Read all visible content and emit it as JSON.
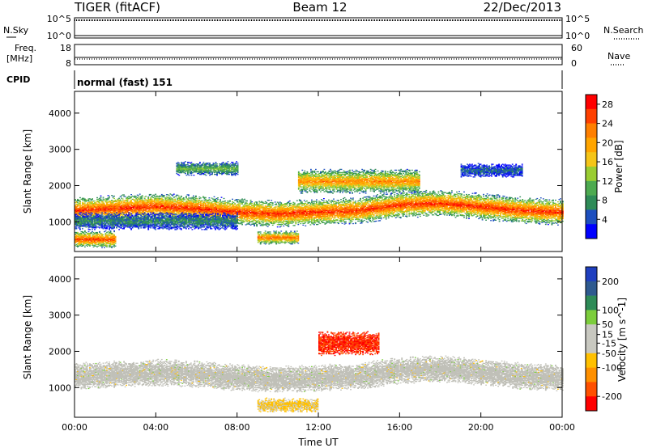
{
  "header": {
    "title": "TIGER (fitACF)",
    "beam": "Beam 12",
    "date": "22/Dec/2013"
  },
  "noise_panel": {
    "left_label": "N.Sky",
    "right_label": "N.Search",
    "left_ticks": [
      "10^5",
      "10^0"
    ],
    "right_ticks": [
      "10^5",
      "10^0"
    ]
  },
  "freq_panel": {
    "left_label_1": "Freq.",
    "left_label_2": "[MHz]",
    "left_ticks": [
      "18",
      "8"
    ],
    "right_label": "Nave",
    "right_ticks": [
      "60",
      "0"
    ]
  },
  "cpid_panel": {
    "label": "CPID",
    "text": "normal (fast) 151"
  },
  "colors": {
    "power_scale": [
      "#0000ff",
      "#1d4fbf",
      "#2e8b57",
      "#4daa50",
      "#9acd32",
      "#f5c518",
      "#ffa500",
      "#ff7f00",
      "#ff4000",
      "#ff0000"
    ],
    "velocity_scale": [
      "#1f3fbf",
      "#2e5a8f",
      "#2e8b57",
      "#7ccd3c",
      "#c8c8c0",
      "#c8c8c0",
      "#ffc000",
      "#ff9000",
      "#ff5000",
      "#ff0000"
    ],
    "ground_scatter": "#c0c0b8"
  },
  "chart_data": [
    {
      "type": "heatmap",
      "name": "power-panel",
      "xlabel": "",
      "ylabel": "Slant Range [km]",
      "x_ticks": [
        "00:00",
        "04:00",
        "08:00",
        "12:00",
        "16:00",
        "20:00",
        "00:00"
      ],
      "y_ticks": [
        1000,
        2000,
        3000,
        4000
      ],
      "xlim": [
        0,
        24
      ],
      "ylim": [
        180,
        4600
      ],
      "colorbar": {
        "label": "Power [dB]",
        "ticks": [
          4,
          8,
          12,
          16,
          20,
          24,
          28
        ],
        "range": [
          0,
          30
        ]
      },
      "bands": [
        {
          "t": [
            0,
            24
          ],
          "center": [
            1300,
            1350,
            1400,
            1350,
            1250,
            1200,
            1250,
            1300,
            1450,
            1500,
            1400,
            1300,
            1250
          ],
          "width": 380,
          "level": 27
        },
        {
          "t": [
            0,
            8
          ],
          "center": 1000,
          "width": 250,
          "level": 8
        },
        {
          "t": [
            0,
            2
          ],
          "center": 500,
          "width": 250,
          "level": 26
        },
        {
          "t": [
            9,
            11
          ],
          "center": 550,
          "width": 200,
          "level": 24
        },
        {
          "t": [
            11,
            17
          ],
          "center": 2100,
          "width": 350,
          "level": 22
        },
        {
          "t": [
            5,
            8
          ],
          "center": 2450,
          "width": 200,
          "level": 12
        },
        {
          "t": [
            19,
            22
          ],
          "center": 2400,
          "width": 200,
          "level": 6
        }
      ]
    },
    {
      "type": "heatmap",
      "name": "velocity-panel",
      "xlabel": "Time UT",
      "ylabel": "Slant Range [km]",
      "x_ticks": [
        "00:00",
        "04:00",
        "08:00",
        "12:00",
        "16:00",
        "20:00",
        "00:00"
      ],
      "y_ticks": [
        1000,
        2000,
        3000,
        4000
      ],
      "xlim": [
        0,
        24
      ],
      "ylim": [
        180,
        4600
      ],
      "colorbar": {
        "label": "Velocity [m s^-1]",
        "ticks": [
          200,
          100,
          50,
          15,
          -15,
          -50,
          -100,
          -200
        ],
        "range": [
          -250,
          250
        ]
      },
      "bands": [
        {
          "t": [
            0,
            24
          ],
          "center": [
            1300,
            1350,
            1400,
            1350,
            1250,
            1200,
            1250,
            1300,
            1450,
            1500,
            1400,
            1300,
            1250
          ],
          "width": 380,
          "level": 0
        },
        {
          "t": [
            12,
            15
          ],
          "center": 2200,
          "width": 350,
          "level": -200
        },
        {
          "t": [
            9,
            12
          ],
          "center": 500,
          "width": 200,
          "level": -60
        }
      ]
    }
  ]
}
